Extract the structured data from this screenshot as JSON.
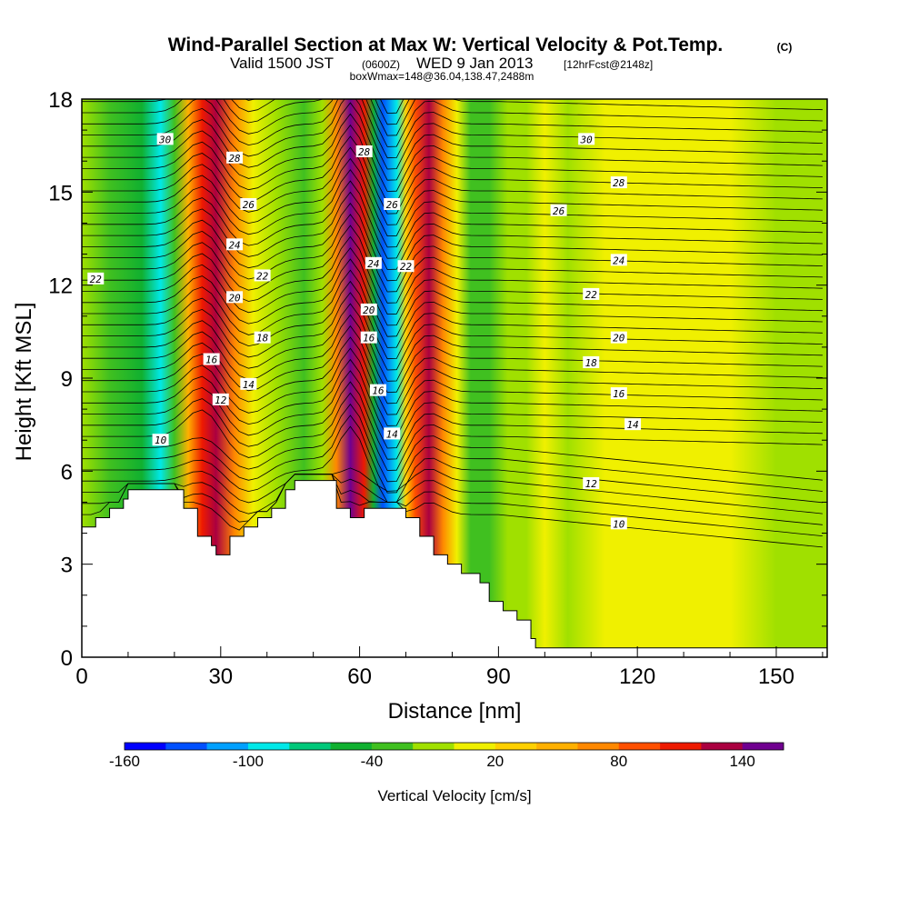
{
  "chart_data": {
    "type": "heatmap",
    "title": "Wind-Parallel Section at Max W: Vertical Velocity & Pot.Temp.",
    "title_badge": "(C)",
    "subtitle": {
      "valid": "Valid 1500 JST",
      "utc": "(0600Z)",
      "date": "WED 9 Jan 2013",
      "fcst": "[12hrFcst@2148z]"
    },
    "subtitle2": "boxWmax=148@36.04,138.47,2488m",
    "xlabel": "Distance [nm]",
    "ylabel": "Height [Kft MSL]",
    "xlim": [
      0,
      161
    ],
    "ylim": [
      0,
      18
    ],
    "x_ticks": [
      "0",
      "30",
      "60",
      "90",
      "120",
      "150"
    ],
    "y_ticks": [
      "0",
      "3",
      "6",
      "9",
      "12",
      "15",
      "18"
    ],
    "colorbar": {
      "label": "Vertical Velocity [cm/s]",
      "tick_labels": [
        "-160",
        "-100",
        "-40",
        "20",
        "80",
        "140"
      ],
      "levels": [
        -160,
        -140,
        -120,
        -100,
        -80,
        -60,
        -40,
        -20,
        0,
        20,
        40,
        60,
        80,
        100,
        120,
        140,
        160
      ],
      "colors": [
        "#0000ff",
        "#0050ff",
        "#00a0ff",
        "#00e8e8",
        "#00c87a",
        "#10b030",
        "#40c020",
        "#a0e000",
        "#f0f000",
        "#ffd000",
        "#ffb000",
        "#ff8800",
        "#ff5000",
        "#ee1a00",
        "#aa0040",
        "#700090"
      ]
    },
    "vertical_velocity_bands": [
      {
        "x": 0,
        "w": -20
      },
      {
        "x": 6,
        "w": -40
      },
      {
        "x": 13,
        "w": -60
      },
      {
        "x": 17,
        "w": -90
      },
      {
        "x": 20,
        "w": -30
      },
      {
        "x": 23,
        "w": 40
      },
      {
        "x": 26,
        "w": 100
      },
      {
        "x": 29,
        "w": 120
      },
      {
        "x": 33,
        "w": 60
      },
      {
        "x": 37,
        "w": 0
      },
      {
        "x": 42,
        "w": -20
      },
      {
        "x": 48,
        "w": -40
      },
      {
        "x": 52,
        "w": -20
      },
      {
        "x": 55,
        "w": 60
      },
      {
        "x": 58,
        "w": 148
      },
      {
        "x": 61,
        "w": 100
      },
      {
        "x": 63,
        "w": -60
      },
      {
        "x": 65,
        "w": -140
      },
      {
        "x": 68,
        "w": -100
      },
      {
        "x": 70,
        "w": 20
      },
      {
        "x": 72,
        "w": 80
      },
      {
        "x": 75,
        "w": 120
      },
      {
        "x": 78,
        "w": 60
      },
      {
        "x": 81,
        "w": 0
      },
      {
        "x": 84,
        "w": -30
      },
      {
        "x": 88,
        "w": -40
      },
      {
        "x": 92,
        "w": -10
      },
      {
        "x": 96,
        "w": -20
      },
      {
        "x": 100,
        "w": 10
      },
      {
        "x": 105,
        "w": -10
      },
      {
        "x": 113,
        "w": 0
      },
      {
        "x": 120,
        "w": 10
      },
      {
        "x": 130,
        "w": 10
      },
      {
        "x": 140,
        "w": 0
      },
      {
        "x": 150,
        "w": -10
      },
      {
        "x": 161,
        "w": -15
      }
    ],
    "terrain": {
      "x": [
        0,
        3,
        6,
        9,
        10,
        19,
        22,
        25,
        28,
        29,
        32,
        35,
        38,
        41,
        44,
        46,
        51,
        55,
        58,
        61,
        66,
        70,
        73,
        76,
        79,
        82,
        86,
        88,
        91,
        94,
        97,
        98,
        161
      ],
      "height_kft": [
        4.2,
        4.5,
        4.8,
        5.1,
        5.4,
        5.4,
        4.8,
        3.9,
        3.6,
        3.3,
        3.9,
        4.2,
        4.5,
        4.8,
        5.4,
        5.7,
        5.7,
        4.8,
        4.5,
        4.8,
        4.8,
        4.5,
        3.9,
        3.3,
        3.0,
        2.7,
        2.4,
        1.8,
        1.5,
        1.2,
        0.6,
        0.3,
        0.3
      ]
    },
    "potential_temperature_contours": {
      "levels_c": [
        6,
        8,
        10,
        12,
        14,
        16,
        18,
        20,
        22,
        24,
        26,
        28,
        30
      ],
      "labels": [
        {
          "text": "30",
          "x": 18,
          "y": 16.7
        },
        {
          "text": "28",
          "x": 33,
          "y": 16.1
        },
        {
          "text": "26",
          "x": 36,
          "y": 14.6
        },
        {
          "text": "24",
          "x": 33,
          "y": 13.3
        },
        {
          "text": "22",
          "x": 39,
          "y": 12.3
        },
        {
          "text": "20",
          "x": 33,
          "y": 11.6
        },
        {
          "text": "18",
          "x": 39,
          "y": 10.3
        },
        {
          "text": "16",
          "x": 28,
          "y": 9.6
        },
        {
          "text": "14",
          "x": 36,
          "y": 8.8
        },
        {
          "text": "12",
          "x": 30,
          "y": 8.3
        },
        {
          "text": "10",
          "x": 17,
          "y": 7.0
        },
        {
          "text": "22",
          "x": 3,
          "y": 12.2
        },
        {
          "text": "28",
          "x": 61,
          "y": 16.3
        },
        {
          "text": "26",
          "x": 67,
          "y": 14.6
        },
        {
          "text": "24",
          "x": 63,
          "y": 12.7
        },
        {
          "text": "22",
          "x": 70,
          "y": 12.6
        },
        {
          "text": "20",
          "x": 62,
          "y": 11.2
        },
        {
          "text": "16",
          "x": 62,
          "y": 10.3
        },
        {
          "text": "16",
          "x": 64,
          "y": 8.6
        },
        {
          "text": "14",
          "x": 67,
          "y": 7.2
        },
        {
          "text": "30",
          "x": 109,
          "y": 16.7
        },
        {
          "text": "28",
          "x": 116,
          "y": 15.3
        },
        {
          "text": "26",
          "x": 103,
          "y": 14.4
        },
        {
          "text": "24",
          "x": 116,
          "y": 12.8
        },
        {
          "text": "22",
          "x": 110,
          "y": 11.7
        },
        {
          "text": "20",
          "x": 116,
          "y": 10.3
        },
        {
          "text": "18",
          "x": 110,
          "y": 9.5
        },
        {
          "text": "16",
          "x": 116,
          "y": 8.5
        },
        {
          "text": "14",
          "x": 119,
          "y": 7.5
        },
        {
          "text": "12",
          "x": 110,
          "y": 5.6
        },
        {
          "text": "10",
          "x": 116,
          "y": 4.3
        }
      ]
    }
  }
}
